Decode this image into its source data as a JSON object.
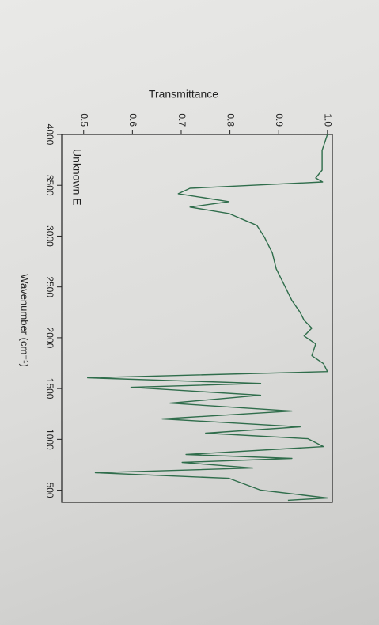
{
  "chart_data": {
    "type": "line",
    "x_label": "Wavenumber (cm⁻¹)",
    "y_label": "Transmittance",
    "annotation": "Unknown E",
    "xlim": [
      4000,
      380
    ],
    "ylim": [
      0.455,
      1.01
    ],
    "xticks": [
      4000,
      3500,
      3000,
      2500,
      2000,
      1500,
      1000,
      500
    ],
    "yticks": [
      0.5,
      0.6,
      0.7,
      0.8,
      0.9,
      {
        "value": 1,
        "label": "1.0"
      }
    ],
    "x": [
      4000,
      3844,
      3650,
      3572,
      3533,
      3471,
      3417,
      3339,
      3285,
      3222,
      3106,
      2989,
      2834,
      2678,
      2523,
      2367,
      2250,
      2173,
      2095,
      2017,
      1939,
      1823,
      1745,
      1667,
      1605,
      1550,
      1512,
      1434,
      1356,
      1278,
      1201,
      1123,
      1061,
      1006,
      928,
      851,
      812,
      773,
      718,
      672,
      617,
      501,
      423,
      400
    ],
    "series": [
      {
        "name": "Unknown E",
        "color": "#2f6d4b",
        "values": [
          1.0,
          0.989,
          0.989,
          0.976,
          0.99,
          0.718,
          0.694,
          0.798,
          0.718,
          0.798,
          0.855,
          0.871,
          0.887,
          0.895,
          0.911,
          0.927,
          0.944,
          0.952,
          0.968,
          0.952,
          0.976,
          0.968,
          0.992,
          1.0,
          0.508,
          0.863,
          0.597,
          0.863,
          0.677,
          0.927,
          0.661,
          0.944,
          0.75,
          0.96,
          0.992,
          0.71,
          0.927,
          0.702,
          0.847,
          0.524,
          0.798,
          0.863,
          1.0,
          0.919
        ]
      }
    ]
  }
}
